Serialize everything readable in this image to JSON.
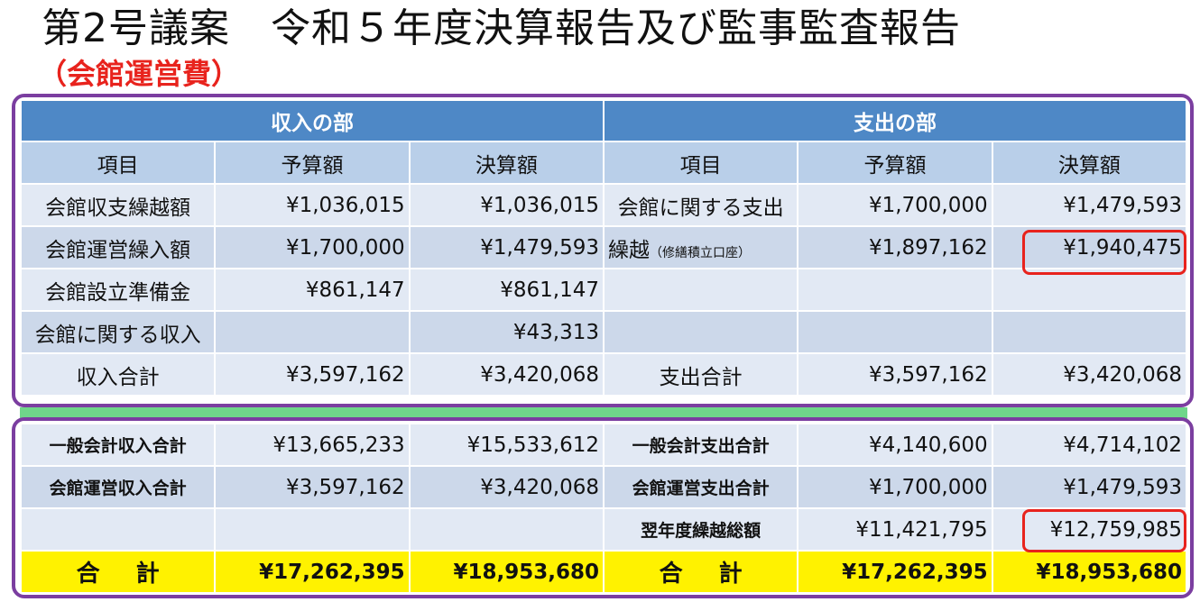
{
  "slide": {
    "title": "第2号議案　令和５年度決算報告及び監事監査報告",
    "subtitle": "（会館運営費）"
  },
  "income_expense": {
    "income_header": "収入の部",
    "expense_header": "支出の部",
    "columns": [
      "項目",
      "予算額",
      "決算額",
      "項目",
      "予算額",
      "決算額"
    ],
    "rows": [
      {
        "in_item": "会館収支繰越額",
        "in_budget": "¥1,036,015",
        "in_actual": "¥1,036,015",
        "out_item": "会館に関する支出",
        "out_item_note": "",
        "out_budget": "¥1,700,000",
        "out_actual": "¥1,479,593"
      },
      {
        "in_item": "会館運営繰入額",
        "in_budget": "¥1,700,000",
        "in_actual": "¥1,479,593",
        "out_item": "繰越",
        "out_item_note": "（修繕積立口座）",
        "out_budget": "¥1,897,162",
        "out_actual": "¥1,940,475"
      },
      {
        "in_item": "会館設立準備金",
        "in_budget": "¥861,147",
        "in_actual": "¥861,147",
        "out_item": "",
        "out_item_note": "",
        "out_budget": "",
        "out_actual": ""
      },
      {
        "in_item": "会館に関する収入",
        "in_budget": "",
        "in_actual": "¥43,313",
        "out_item": "",
        "out_item_note": "",
        "out_budget": "",
        "out_actual": ""
      },
      {
        "in_item": "収入合計",
        "in_budget": "¥3,597,162",
        "in_actual": "¥3,420,068",
        "out_item": "支出合計",
        "out_item_note": "",
        "out_budget": "¥3,597,162",
        "out_actual": "¥3,420,068"
      }
    ]
  },
  "summary": {
    "rows": [
      {
        "in_item": "一般会計収入合計",
        "in_budget": "¥13,665,233",
        "in_actual": "¥15,533,612",
        "out_item": "一般会計支出合計",
        "out_budget": "¥4,140,600",
        "out_actual": "¥4,714,102"
      },
      {
        "in_item": "会館運営収入合計",
        "in_budget": "¥3,597,162",
        "in_actual": "¥3,420,068",
        "out_item": "会館運営支出合計",
        "out_budget": "¥1,700,000",
        "out_actual": "¥1,479,593"
      },
      {
        "in_item": "",
        "in_budget": "",
        "in_actual": "",
        "out_item": "翌年度繰越総額",
        "out_budget": "¥11,421,795",
        "out_actual": "¥12,759,985"
      }
    ],
    "total": {
      "in_label": "合計",
      "in_budget": "¥17,262,395",
      "in_actual": "¥18,953,680",
      "out_label": "合計",
      "out_budget": "¥17,262,395",
      "out_actual": "¥18,953,680"
    }
  },
  "colors": {
    "header_blue": "#4e88c6",
    "frame_purple": "#7b3ea0",
    "highlight_red": "#e8231d",
    "total_yellow": "#fff200"
  }
}
